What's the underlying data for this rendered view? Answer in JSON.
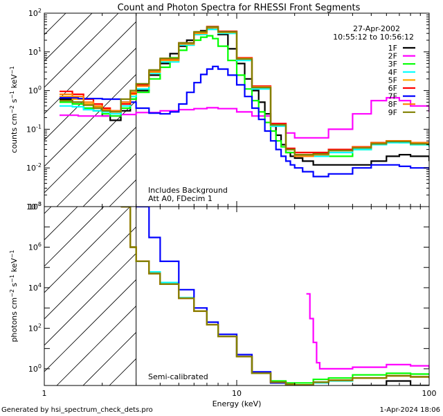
{
  "chart_data": [
    {
      "type": "line",
      "panel": "top",
      "title": "Count and Photon Spectra for RHESSI Front Segments",
      "xlabel": "",
      "ylabel": "counts cm^-2 s^-1 keV^-1",
      "xscale": "log",
      "yscale": "log",
      "xlim": [
        1,
        100
      ],
      "ylim": [
        0.001,
        100
      ],
      "y_ticks": [
        "10^-3",
        "10^-2",
        "10^-1",
        "10^0",
        "10^1",
        "10^2"
      ],
      "date": "27-Apr-2002",
      "time_range": "10:55:12 to 10:56:12",
      "annotations": [
        "Includes Background",
        "Att A0, FDecim 1"
      ],
      "hatched_region_keV": [
        1,
        3
      ],
      "legend_position": "top-right",
      "series": [
        {
          "name": "1F",
          "color": "#000000",
          "x": [
            1.2,
            1.4,
            1.6,
            1.8,
            2.0,
            2.2,
            2.5,
            2.8,
            3.0,
            3.5,
            4,
            4.5,
            5,
            5.5,
            6,
            6.5,
            7,
            7.5,
            8,
            9,
            10,
            11,
            12,
            13,
            14,
            15,
            16,
            17,
            18,
            19,
            20,
            22,
            25,
            30,
            40,
            50,
            60,
            70,
            80,
            100
          ],
          "y": [
            0.6,
            0.5,
            0.35,
            0.3,
            0.22,
            0.17,
            0.3,
            0.6,
            1.0,
            2.5,
            5,
            9,
            14,
            20,
            28,
            35,
            40,
            38,
            28,
            12,
            5,
            2,
            1.0,
            0.5,
            0.25,
            0.12,
            0.07,
            0.04,
            0.025,
            0.02,
            0.018,
            0.015,
            0.012,
            0.012,
            0.012,
            0.015,
            0.02,
            0.022,
            0.02,
            0.015
          ]
        },
        {
          "name": "2F",
          "color": "#ff00ff",
          "x": [
            1.2,
            1.5,
            2,
            2.5,
            3,
            4,
            5,
            6,
            7,
            8,
            10,
            12,
            15,
            18,
            20,
            25,
            30,
            40,
            50,
            60,
            70,
            80,
            100
          ],
          "y": [
            0.23,
            0.22,
            0.22,
            0.24,
            0.27,
            0.3,
            0.32,
            0.34,
            0.36,
            0.34,
            0.28,
            0.22,
            0.14,
            0.08,
            0.06,
            0.06,
            0.1,
            0.25,
            0.55,
            0.65,
            0.55,
            0.4,
            0.28
          ]
        },
        {
          "name": "3F",
          "color": "#00ff00",
          "x": [
            1.2,
            1.4,
            1.6,
            1.8,
            2.0,
            2.2,
            2.5,
            2.8,
            3.0,
            3.5,
            4,
            4.5,
            5,
            5.5,
            6,
            6.5,
            7,
            7.5,
            8,
            9,
            10,
            11,
            12,
            13,
            14,
            15,
            16,
            17,
            18,
            20,
            25,
            30,
            40,
            50,
            60,
            70,
            80,
            100
          ],
          "y": [
            0.5,
            0.45,
            0.35,
            0.3,
            0.25,
            0.22,
            0.35,
            0.6,
            0.9,
            2,
            4,
            7,
            11,
            15,
            20,
            24,
            26,
            22,
            14,
            6,
            2.5,
            1.1,
            0.55,
            0.28,
            0.15,
            0.09,
            0.05,
            0.035,
            0.025,
            0.022,
            0.02,
            0.02,
            0.03,
            0.045,
            0.05,
            0.045,
            0.04,
            0.035
          ]
        },
        {
          "name": "4F",
          "color": "#00ffff",
          "x": [
            1.2,
            1.4,
            1.6,
            1.8,
            2.0,
            2.2,
            2.5,
            2.8,
            3.0,
            3.5,
            4,
            5,
            6,
            7,
            8,
            10,
            12,
            15,
            18,
            20,
            25,
            30,
            40,
            50,
            60,
            80,
            100
          ],
          "y": [
            0.4,
            0.38,
            0.32,
            0.3,
            0.28,
            0.25,
            0.4,
            0.7,
            1.1,
            2.8,
            5.5,
            15,
            28,
            38,
            30,
            6,
            1.1,
            0.12,
            0.03,
            0.02,
            0.02,
            0.025,
            0.03,
            0.04,
            0.045,
            0.04,
            0.035
          ]
        },
        {
          "name": "5F",
          "color": "#ffaa00",
          "x": [
            1.2,
            1.4,
            1.6,
            1.8,
            2.0,
            2.2,
            2.5,
            2.8,
            3.0,
            3.5,
            4,
            5,
            6,
            7,
            8,
            10,
            12,
            15,
            18,
            20,
            25,
            30,
            40,
            50,
            60,
            80,
            100
          ],
          "y": [
            0.7,
            0.6,
            0.45,
            0.38,
            0.3,
            0.28,
            0.45,
            0.8,
            1.3,
            3,
            6,
            16,
            30,
            42,
            32,
            6.5,
            1.2,
            0.13,
            0.03,
            0.025,
            0.025,
            0.03,
            0.035,
            0.045,
            0.05,
            0.045,
            0.04
          ]
        },
        {
          "name": "6F",
          "color": "#ff0000",
          "x": [
            1.2,
            1.4,
            1.6,
            1.8,
            2.0,
            2.2,
            2.5,
            2.8,
            3.0,
            3.5,
            4,
            5,
            6,
            7,
            8,
            10,
            12,
            15,
            18,
            20,
            25,
            30,
            40,
            50,
            60,
            80,
            100
          ],
          "y": [
            0.95,
            0.8,
            0.6,
            0.45,
            0.35,
            0.3,
            0.45,
            0.85,
            1.4,
            3.2,
            6.5,
            17,
            32,
            45,
            34,
            7,
            1.3,
            0.14,
            0.032,
            0.025,
            0.025,
            0.03,
            0.035,
            0.045,
            0.05,
            0.045,
            0.04
          ]
        },
        {
          "name": "7F",
          "color": "#0000ff",
          "x": [
            1.2,
            1.5,
            2,
            2.5,
            3,
            3.5,
            4,
            4.5,
            5,
            5.5,
            6,
            6.5,
            7,
            7.5,
            8,
            9,
            10,
            11,
            12,
            13,
            14,
            15,
            16,
            17,
            18,
            19,
            20,
            22,
            25,
            30,
            40,
            50,
            60,
            70,
            80,
            100
          ],
          "y": [
            0.65,
            0.62,
            0.6,
            0.5,
            0.35,
            0.26,
            0.25,
            0.28,
            0.45,
            0.9,
            1.6,
            2.6,
            3.6,
            4.2,
            3.6,
            2.5,
            1.4,
            0.7,
            0.35,
            0.18,
            0.09,
            0.05,
            0.03,
            0.02,
            0.015,
            0.012,
            0.01,
            0.008,
            0.006,
            0.007,
            0.01,
            0.012,
            0.012,
            0.011,
            0.01,
            0.009
          ]
        },
        {
          "name": "8F",
          "color": "#ff8000",
          "x": [
            1.2,
            1.4,
            1.6,
            1.8,
            2.0,
            2.2,
            2.5,
            2.8,
            3.0,
            3.5,
            4,
            5,
            6,
            7,
            8,
            10,
            12,
            15,
            18,
            20,
            25,
            30,
            40,
            50,
            60,
            80,
            100
          ],
          "y": [
            0.8,
            0.7,
            0.5,
            0.4,
            0.32,
            0.3,
            0.5,
            0.9,
            1.3,
            3.1,
            6.2,
            16,
            31,
            43,
            33,
            6.8,
            1.25,
            0.13,
            0.03,
            0.02,
            0.022,
            0.028,
            0.034,
            0.044,
            0.05,
            0.045,
            0.04
          ]
        },
        {
          "name": "9F",
          "color": "#808000",
          "x": [
            1.2,
            1.4,
            1.6,
            1.8,
            2.0,
            2.2,
            2.5,
            2.8,
            3.0,
            3.5,
            4,
            5,
            6,
            7,
            8,
            10,
            12,
            15,
            18,
            20,
            25,
            30,
            40,
            50,
            60,
            80,
            100
          ],
          "y": [
            0.55,
            0.5,
            0.42,
            0.35,
            0.3,
            0.28,
            0.6,
            1.0,
            1.5,
            3.4,
            6.8,
            17,
            33,
            44,
            33,
            6.6,
            1.2,
            0.13,
            0.03,
            0.022,
            0.023,
            0.028,
            0.033,
            0.042,
            0.048,
            0.042,
            0.038
          ]
        }
      ]
    },
    {
      "type": "line",
      "panel": "bottom",
      "xlabel": "Energy (keV)",
      "ylabel": "photons cm^-2 s^-1 keV^-1",
      "xscale": "log",
      "yscale": "log",
      "xlim": [
        1,
        100
      ],
      "ylim": [
        0.15,
        100000000
      ],
      "x_ticks": [
        "1",
        "10",
        "100"
      ],
      "y_ticks": [
        "10^0",
        "10^2",
        "10^4",
        "10^6",
        "10^8"
      ],
      "annotations": [
        "Semi-calibrated"
      ],
      "hatched_region_keV": [
        1,
        3
      ],
      "series": [
        {
          "name": "1F",
          "color": "#000000",
          "x": [
            2.5,
            2.8,
            3.0,
            3.5,
            4,
            5,
            6,
            7,
            8,
            10,
            12,
            15,
            18,
            20,
            25,
            30,
            40,
            60,
            80,
            100
          ],
          "y": [
            100000000,
            1000000,
            200000,
            50000,
            15000,
            3000,
            700,
            150,
            40,
            4,
            0.6,
            0.2,
            0.12,
            0.1,
            0.12,
            0.12,
            0.15,
            0.25,
            0.15,
            0.12
          ]
        },
        {
          "name": "2F",
          "color": "#ff00ff",
          "x": [
            23,
            24,
            25,
            26,
            27,
            30,
            40,
            60,
            80,
            100
          ],
          "y": [
            5000,
            300,
            20,
            2,
            1,
            1,
            1.2,
            1.6,
            1.4,
            1.1
          ]
        },
        {
          "name": "3F",
          "color": "#00ff00",
          "x": [
            2.5,
            2.8,
            3.0,
            3.5,
            4,
            5,
            6,
            7,
            8,
            10,
            12,
            15,
            18,
            20,
            25,
            30,
            40,
            60,
            80,
            100
          ],
          "y": [
            100000000,
            1000000,
            200000,
            50000,
            15000,
            3000,
            700,
            150,
            40,
            4,
            0.6,
            0.25,
            0.2,
            0.2,
            0.3,
            0.35,
            0.5,
            0.6,
            0.55,
            0.5
          ]
        },
        {
          "name": "4F",
          "color": "#00ffff",
          "x": [
            2.5,
            2.8,
            3.0,
            3.5,
            4,
            5,
            6,
            7,
            8,
            10,
            12,
            15,
            18,
            20,
            25,
            30,
            40,
            60,
            80,
            100
          ],
          "y": [
            100000000,
            1000000,
            200000,
            60000,
            18000,
            3200,
            700,
            150,
            40,
            4,
            0.6,
            0.22,
            0.16,
            0.15,
            0.2,
            0.25,
            0.35,
            0.45,
            0.4,
            0.35
          ]
        },
        {
          "name": "5F",
          "color": "#ffaa00",
          "x": [
            2.5,
            2.8,
            3.0,
            3.5,
            4,
            5,
            6,
            7,
            8,
            10,
            12,
            15,
            18,
            20,
            25,
            30,
            40,
            60,
            80,
            100
          ],
          "y": [
            100000000,
            1000000,
            200000,
            50000,
            15000,
            3000,
            700,
            150,
            40,
            4,
            0.6,
            0.22,
            0.17,
            0.16,
            0.22,
            0.27,
            0.35,
            0.45,
            0.4,
            0.35
          ]
        },
        {
          "name": "6F",
          "color": "#ff0000",
          "x": [
            2.5,
            2.8,
            3.0,
            3.5,
            4,
            5,
            6,
            7,
            8,
            10,
            12,
            15,
            18,
            20,
            25,
            30,
            40,
            60,
            80,
            100
          ],
          "y": [
            100000000,
            1000000,
            200000,
            50000,
            15000,
            3000,
            700,
            150,
            40,
            4,
            0.6,
            0.22,
            0.17,
            0.16,
            0.22,
            0.27,
            0.35,
            0.45,
            0.4,
            0.35
          ]
        },
        {
          "name": "7F",
          "color": "#0000ff",
          "x": [
            3.0,
            3.5,
            4,
            5,
            6,
            7,
            8,
            10,
            12,
            15,
            18,
            20,
            25,
            30,
            40,
            60,
            80,
            100
          ],
          "y": [
            100000000,
            3000000,
            200000,
            8000,
            1000,
            200,
            50,
            5,
            0.7,
            0.2,
            0.12,
            0.09,
            0.08,
            0.07,
            0.07,
            0.1,
            0.09,
            0.07
          ]
        },
        {
          "name": "8F",
          "color": "#ff8000",
          "x": [
            2.5,
            2.8,
            3.0,
            3.5,
            4,
            5,
            6,
            7,
            8,
            10,
            12,
            15,
            18,
            20,
            25,
            30,
            40,
            60,
            80,
            100
          ],
          "y": [
            100000000,
            1000000,
            200000,
            50000,
            15000,
            3000,
            700,
            150,
            40,
            4,
            0.6,
            0.22,
            0.17,
            0.16,
            0.22,
            0.27,
            0.35,
            0.45,
            0.4,
            0.35
          ]
        },
        {
          "name": "9F",
          "color": "#808000",
          "x": [
            2.5,
            2.8,
            3.0,
            3.5,
            4,
            5,
            6,
            7,
            8,
            10,
            12,
            15,
            18,
            20,
            25,
            30,
            40,
            60,
            80,
            100
          ],
          "y": [
            100000000,
            1000000,
            200000,
            50000,
            15000,
            3000,
            700,
            150,
            40,
            4,
            0.6,
            0.22,
            0.17,
            0.16,
            0.22,
            0.27,
            0.35,
            0.45,
            0.4,
            0.35
          ]
        }
      ]
    }
  ],
  "footer": {
    "generated_by": "Generated by hsi_spectrum_check_dets.pro",
    "timestamp": "1-Apr-2024 18:06"
  }
}
